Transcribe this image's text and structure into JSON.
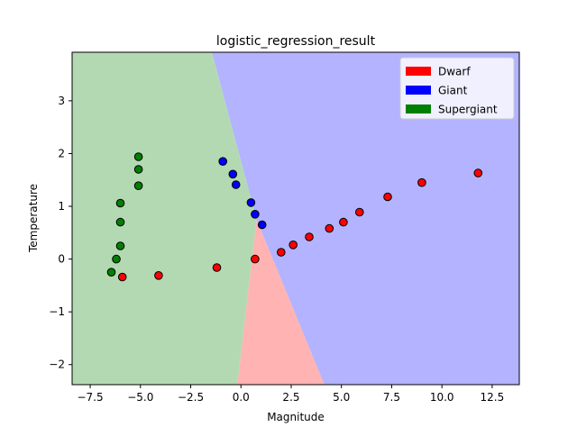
{
  "chart_data": {
    "type": "scatter",
    "title": "logistic_regression_result",
    "xlabel": "Magnitude",
    "ylabel": "Temperature",
    "xlim": [
      -8.4,
      13.85
    ],
    "ylim": [
      -2.38,
      3.92
    ],
    "xticks": [
      -7.5,
      -5.0,
      -2.5,
      0.0,
      2.5,
      5.0,
      7.5,
      10.0,
      12.5
    ],
    "xtick_labels": [
      "−7.5",
      "−5.0",
      "−2.5",
      "0.0",
      "2.5",
      "5.0",
      "7.5",
      "10.0",
      "12.5"
    ],
    "yticks": [
      -2,
      -1,
      0,
      1,
      2,
      3
    ],
    "ytick_labels": [
      "−2",
      "−1",
      "0",
      "1",
      "2",
      "3"
    ],
    "grid": false,
    "legend_position": "top-right",
    "decision_regions": [
      {
        "name": "Dwarf",
        "color": "#ffb3b3",
        "polygon": [
          [
            -0.18,
            -2.38
          ],
          [
            0.78,
            0.75
          ],
          [
            4.15,
            -2.38
          ]
        ]
      },
      {
        "name": "Giant",
        "color": "#b3b3ff",
        "polygon": [
          [
            -1.45,
            3.92
          ],
          [
            13.85,
            3.92
          ],
          [
            13.85,
            -2.38
          ],
          [
            4.15,
            -2.38
          ],
          [
            0.78,
            0.75
          ]
        ]
      },
      {
        "name": "Supergiant",
        "color": "#b3d9b3",
        "polygon": [
          [
            -8.4,
            3.92
          ],
          [
            -1.45,
            3.92
          ],
          [
            0.78,
            0.75
          ],
          [
            -0.18,
            -2.38
          ],
          [
            -8.4,
            -2.38
          ]
        ]
      }
    ],
    "series": [
      {
        "name": "Dwarf",
        "color": "#ff0000",
        "points": [
          [
            -5.9,
            -0.34
          ],
          [
            -4.1,
            -0.31
          ],
          [
            -1.2,
            -0.16
          ],
          [
            0.7,
            0.0
          ],
          [
            2.0,
            0.13
          ],
          [
            2.6,
            0.27
          ],
          [
            3.4,
            0.42
          ],
          [
            4.4,
            0.58
          ],
          [
            5.1,
            0.7
          ],
          [
            5.9,
            0.89
          ],
          [
            7.3,
            1.18
          ],
          [
            9.0,
            1.45
          ],
          [
            11.8,
            1.63
          ]
        ]
      },
      {
        "name": "Giant",
        "color": "#0000ff",
        "points": [
          [
            -0.9,
            1.85
          ],
          [
            -0.4,
            1.61
          ],
          [
            -0.25,
            1.41
          ],
          [
            0.5,
            1.07
          ],
          [
            0.7,
            0.85
          ],
          [
            1.05,
            0.65
          ]
        ]
      },
      {
        "name": "Supergiant",
        "color": "#008000",
        "points": [
          [
            -5.1,
            1.94
          ],
          [
            -5.1,
            1.7
          ],
          [
            -5.1,
            1.39
          ],
          [
            -6.0,
            1.06
          ],
          [
            -6.0,
            0.7
          ],
          [
            -6.0,
            0.25
          ],
          [
            -6.2,
            0.0
          ],
          [
            -6.45,
            -0.25
          ]
        ]
      }
    ],
    "legend": [
      {
        "label": "Dwarf",
        "color": "#ff0000"
      },
      {
        "label": "Giant",
        "color": "#0000ff"
      },
      {
        "label": "Supergiant",
        "color": "#008000"
      }
    ]
  }
}
